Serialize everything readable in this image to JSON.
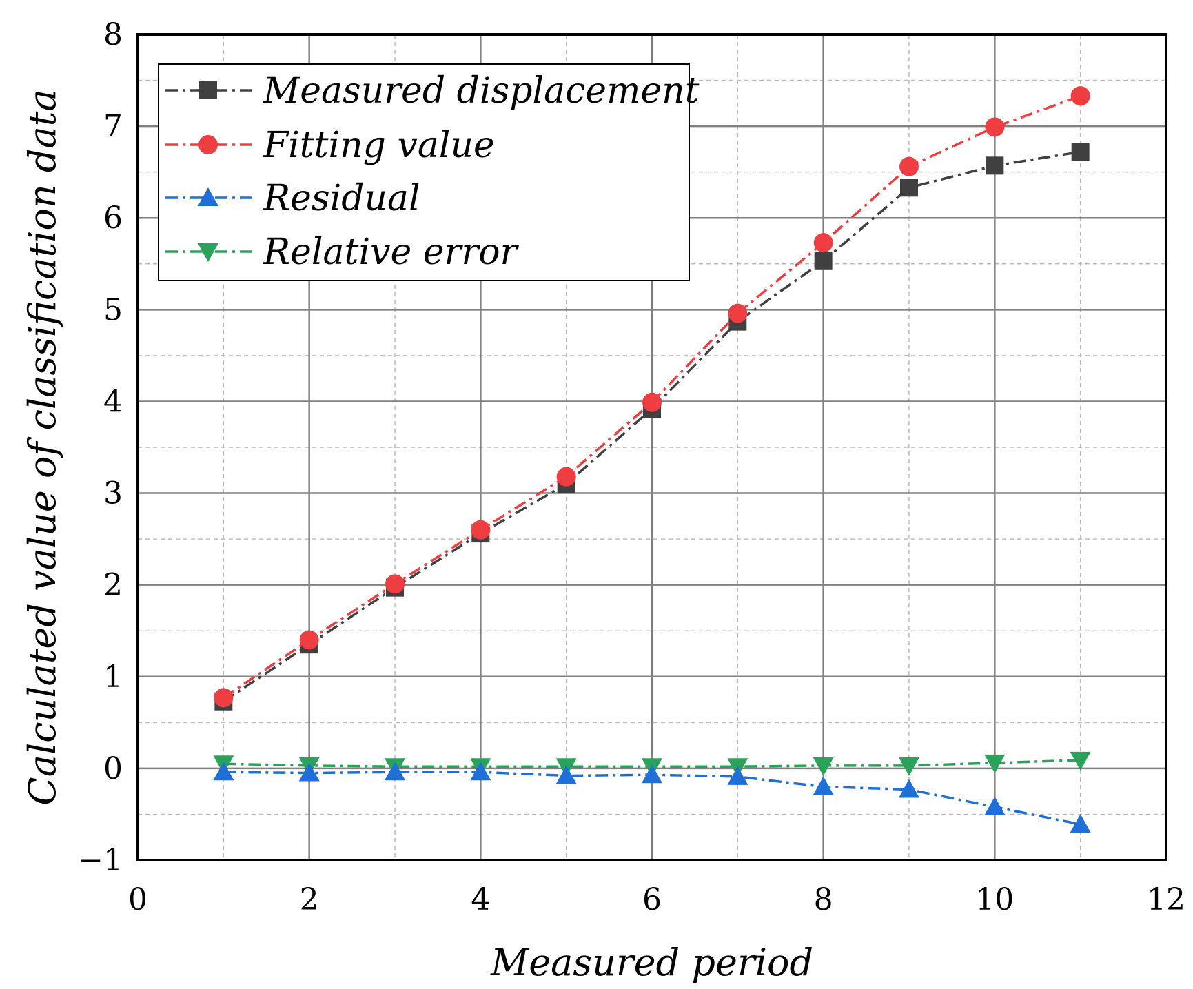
{
  "chart_data": {
    "type": "line",
    "title": "",
    "xlabel": "Measured period",
    "ylabel": "Calculated value of classification data",
    "xlim": [
      0,
      12
    ],
    "ylim": [
      -1,
      8
    ],
    "xticks": [
      "0",
      "2",
      "4",
      "6",
      "8",
      "10",
      "12"
    ],
    "yticks": [
      "−1",
      "0",
      "1",
      "2",
      "3",
      "4",
      "5",
      "6",
      "7",
      "8"
    ],
    "grid": true,
    "legend_position": "top-left",
    "x": [
      1,
      2,
      3,
      4,
      5,
      6,
      7,
      8,
      9,
      10,
      11
    ],
    "series": [
      {
        "name": "Measured displacement",
        "color": "#404040",
        "marker": "square",
        "values": [
          0.73,
          1.35,
          1.97,
          2.56,
          3.1,
          3.92,
          4.87,
          5.53,
          6.33,
          6.57,
          6.72
        ]
      },
      {
        "name": "Fitting value",
        "color": "#ef3e42",
        "marker": "circle",
        "values": [
          0.77,
          1.4,
          2.01,
          2.6,
          3.18,
          3.99,
          4.96,
          5.73,
          6.56,
          6.99,
          7.33
        ]
      },
      {
        "name": "Residual",
        "color": "#1f6fd8",
        "marker": "triangle-up",
        "values": [
          -0.04,
          -0.05,
          -0.04,
          -0.04,
          -0.08,
          -0.07,
          -0.09,
          -0.2,
          -0.23,
          -0.42,
          -0.61
        ]
      },
      {
        "name": "Relative error",
        "color": "#2aa35a",
        "marker": "triangle-down",
        "values": [
          0.05,
          0.03,
          0.02,
          0.02,
          0.02,
          0.02,
          0.02,
          0.03,
          0.03,
          0.06,
          0.09
        ]
      }
    ]
  }
}
